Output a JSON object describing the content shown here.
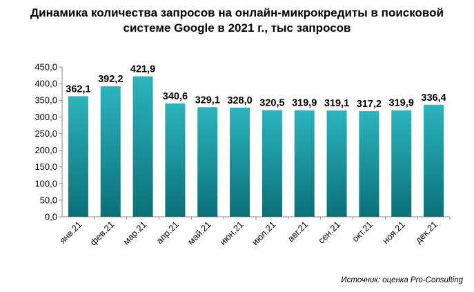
{
  "chart_data": {
    "type": "bar",
    "title_lines": [
      "Динамика количества запросов на онлайн-микрокредиты в поисковой",
      "системе Google в 2021 г., тыс запросов"
    ],
    "categories": [
      "янв.21",
      "фев.21",
      "мар.21",
      "апр.21",
      "май.21",
      "июн.21",
      "июл.21",
      "авг.21",
      "сен.21",
      "окт.21",
      "ноя.21",
      "дек.21"
    ],
    "values": [
      362.1,
      392.2,
      421.9,
      340.6,
      329.1,
      328.0,
      320.5,
      319.9,
      319.1,
      317.2,
      319.9,
      336.4
    ],
    "value_labels": [
      "362,1",
      "392,2",
      "421,9",
      "340,6",
      "329,1",
      "328,0",
      "320,5",
      "319,9",
      "319,1",
      "317,2",
      "319,9",
      "336,4"
    ],
    "y_ticks": [
      "0,0",
      "50,0",
      "100,0",
      "150,0",
      "200,0",
      "250,0",
      "300,0",
      "350,0",
      "400,0",
      "450,0"
    ],
    "ylim": [
      0,
      450
    ],
    "grid": false,
    "legend": "none",
    "bar_color_top": "#2cb4bd",
    "bar_color_bottom": "#0b7078"
  },
  "source": "Источник: оценка Pro-Consulting"
}
